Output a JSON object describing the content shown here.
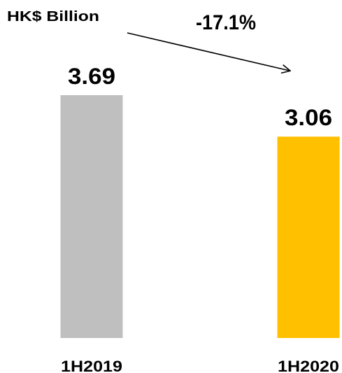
{
  "chart_data": {
    "type": "bar",
    "unit_label": "HK$ Billion",
    "categories": [
      "1H2019",
      "1H2020"
    ],
    "values": [
      3.69,
      3.06
    ],
    "value_labels": [
      "3.69",
      "3.06"
    ],
    "bar_colors": [
      "#bfbfbf",
      "#ffc000"
    ],
    "change_label": "-17.1%",
    "ylim": [
      0,
      3.69
    ],
    "grid": false,
    "legend": "none"
  }
}
